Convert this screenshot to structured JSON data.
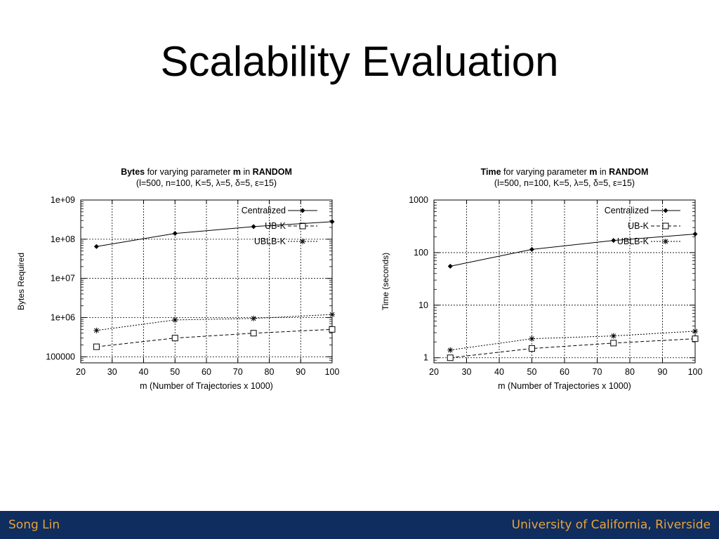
{
  "slide": {
    "title": "Scalability Evaluation",
    "footer_left": "Song Lin",
    "footer_right": "University of California, Riverside"
  },
  "chart_data": [
    {
      "type": "line",
      "title_bold_1": "Bytes",
      "title_mid": " for varying parameter ",
      "title_bold_2": "m",
      "title_mid_2": " in ",
      "title_bold_3": "RANDOM",
      "subtitle": "(l=500, n=100, K=5, λ=5, δ=5, ε=15)",
      "xlabel": "m (Number of Trajectories x 1000)",
      "ylabel": "Bytes Required",
      "yscale": "log",
      "xlim": [
        20,
        100
      ],
      "ylim": [
        70000,
        1000000000
      ],
      "x_ticks": [
        20,
        30,
        40,
        50,
        60,
        70,
        80,
        90,
        100
      ],
      "y_ticks": [
        100000,
        1000000,
        10000000,
        100000000,
        1000000000
      ],
      "y_tick_labels": [
        "100000",
        "1e+06",
        "1e+07",
        "1e+08",
        "1e+09"
      ],
      "grid": true,
      "legend_position": "top-right",
      "series": [
        {
          "name": "Centralized",
          "marker": "diamond",
          "line": "solid",
          "x": [
            25,
            50,
            75,
            100
          ],
          "y": [
            65000000,
            140000000,
            210000000,
            280000000
          ]
        },
        {
          "name": "UB-K",
          "marker": "square",
          "line": "dashed",
          "x": [
            25,
            50,
            75,
            100
          ],
          "y": [
            180000,
            300000,
            400000,
            500000
          ]
        },
        {
          "name": "UBLB-K",
          "marker": "star",
          "line": "dotted",
          "x": [
            25,
            50,
            75,
            100
          ],
          "y": [
            470000,
            870000,
            950000,
            1200000
          ]
        }
      ]
    },
    {
      "type": "line",
      "title_bold_1": "Time",
      "title_mid": " for varying parameter ",
      "title_bold_2": "m",
      "title_mid_2": "  in ",
      "title_bold_3": "RANDOM",
      "subtitle": "(l=500, n=100, K=5, λ=5, δ=5, ε=15)",
      "xlabel": "m (Number of Trajectories x 1000)",
      "ylabel": "Time (seconds)",
      "yscale": "log",
      "xlim": [
        20,
        100
      ],
      "ylim": [
        0.8,
        1000
      ],
      "x_ticks": [
        20,
        30,
        40,
        50,
        60,
        70,
        80,
        90,
        100
      ],
      "y_ticks": [
        1,
        10,
        100,
        1000
      ],
      "y_tick_labels": [
        "1",
        "10",
        "100",
        "1000"
      ],
      "grid": true,
      "legend_position": "top-right",
      "series": [
        {
          "name": "Centralized",
          "marker": "diamond",
          "line": "solid",
          "x": [
            25,
            50,
            75,
            100
          ],
          "y": [
            55,
            115,
            170,
            225
          ]
        },
        {
          "name": "UB-K",
          "marker": "square",
          "line": "dashed",
          "x": [
            25,
            50,
            75,
            100
          ],
          "y": [
            1.0,
            1.5,
            1.9,
            2.3
          ]
        },
        {
          "name": "UBLB-K",
          "marker": "star",
          "line": "dotted",
          "x": [
            25,
            50,
            75,
            100
          ],
          "y": [
            1.4,
            2.3,
            2.6,
            3.2
          ]
        }
      ]
    }
  ]
}
